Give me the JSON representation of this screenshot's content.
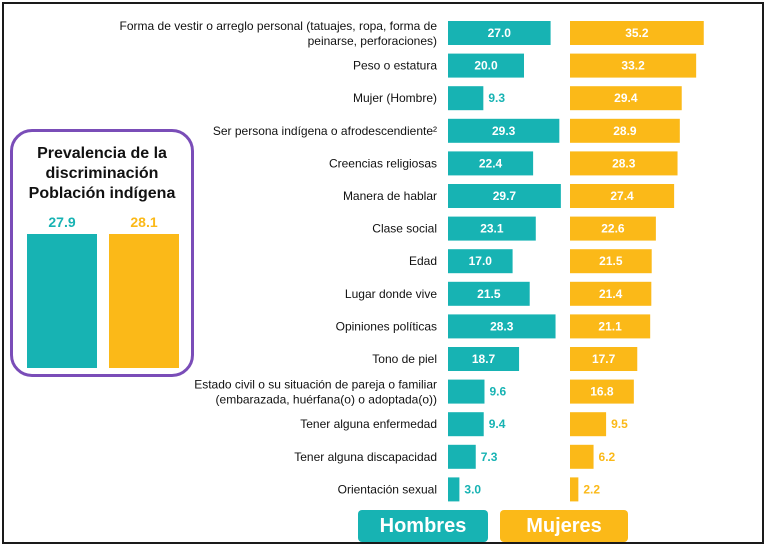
{
  "colors": {
    "hombres": "#17b3b3",
    "mujeres": "#fbb918",
    "summary_border": "#7a4db8"
  },
  "summary": {
    "title_lines": [
      "Prevalencia de la",
      "discriminación",
      "Población indígena"
    ],
    "hombres_label": "27.9",
    "mujeres_label": "28.1",
    "hombres_value": 27.9,
    "mujeres_value": 28.1
  },
  "legend": {
    "hombres": "Hombres",
    "mujeres": "Mujeres"
  },
  "chart_data": {
    "type": "bar",
    "orientation": "horizontal",
    "title": "",
    "categories": [
      [
        "Forma de vestir o arreglo personal (tatuajes, ropa, forma de",
        "peinarse, perforaciones)"
      ],
      [
        "Peso o estatura"
      ],
      [
        "Mujer (Hombre)"
      ],
      [
        "Ser persona indígena o afrodescendiente²"
      ],
      [
        "Creencias religiosas"
      ],
      [
        "Manera de hablar"
      ],
      [
        "Clase social"
      ],
      [
        "Edad"
      ],
      [
        "Lugar donde vive"
      ],
      [
        "Opiniones políticas"
      ],
      [
        "Tono de piel"
      ],
      [
        "Estado civil o su situación de pareja o familiar",
        "(embarazada, huérfana(o) o adoptada(o))"
      ],
      [
        "Tener alguna enfermedad"
      ],
      [
        "Tener alguna discapacidad"
      ],
      [
        "Orientación sexual"
      ]
    ],
    "series": [
      {
        "name": "Hombres",
        "values": [
          27.0,
          20.0,
          9.3,
          29.3,
          22.4,
          29.7,
          23.1,
          17.0,
          21.5,
          28.3,
          18.7,
          9.6,
          9.4,
          7.3,
          3.0
        ],
        "labels": [
          "27.0",
          "20.0",
          "9.3",
          "29.3",
          "22.4",
          "29.7",
          "23.1",
          "17.0",
          "21.5",
          "28.3",
          "18.7",
          "9.6",
          "9.4",
          "7.3",
          "3.0"
        ]
      },
      {
        "name": "Mujeres",
        "values": [
          35.2,
          33.2,
          29.4,
          28.9,
          28.3,
          27.4,
          22.6,
          21.5,
          21.4,
          21.1,
          17.7,
          16.8,
          9.5,
          6.2,
          2.2
        ],
        "labels": [
          "35.2",
          "33.2",
          "29.4",
          "28.9",
          "28.3",
          "27.4",
          "22.6",
          "21.5",
          "21.4",
          "21.1",
          "17.7",
          "16.8",
          "9.5",
          "6.2",
          "2.2"
        ]
      }
    ]
  }
}
